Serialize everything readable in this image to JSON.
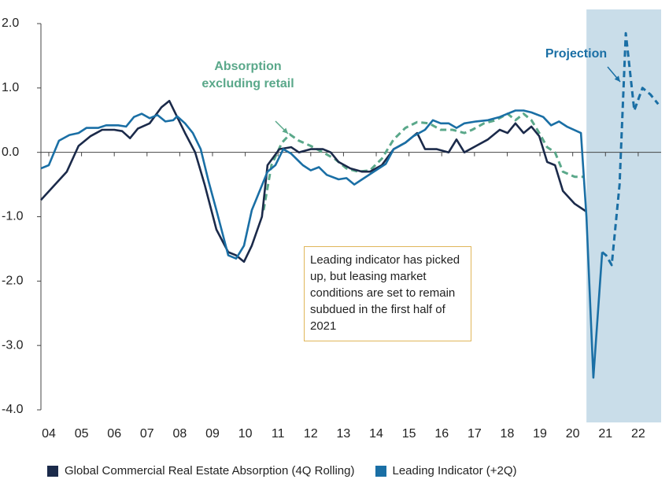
{
  "chart_data": {
    "type": "line",
    "xlim": [
      2003.76,
      2022.7
    ],
    "xticks": [
      {
        "value": 2004,
        "label": "04"
      },
      {
        "value": 2005,
        "label": "05"
      },
      {
        "value": 2006,
        "label": "06"
      },
      {
        "value": 2007,
        "label": "07"
      },
      {
        "value": 2008,
        "label": "08"
      },
      {
        "value": 2009,
        "label": "09"
      },
      {
        "value": 2010,
        "label": "10"
      },
      {
        "value": 2011,
        "label": "11"
      },
      {
        "value": 2012,
        "label": "12"
      },
      {
        "value": 2013,
        "label": "13"
      },
      {
        "value": 2014,
        "label": "14"
      },
      {
        "value": 2015,
        "label": "15"
      },
      {
        "value": 2016,
        "label": "16"
      },
      {
        "value": 2017,
        "label": "17"
      },
      {
        "value": 2018,
        "label": "18"
      },
      {
        "value": 2019,
        "label": "19"
      },
      {
        "value": 2020,
        "label": "20"
      },
      {
        "value": 2021,
        "label": "21"
      },
      {
        "value": 2022,
        "label": "22"
      }
    ],
    "ylim": [
      -4,
      2
    ],
    "yticks": [
      {
        "value": 2,
        "label": "2.0"
      },
      {
        "value": 1,
        "label": "1.0"
      },
      {
        "value": 0,
        "label": "0.0"
      },
      {
        "value": -1,
        "label": "-1.0"
      },
      {
        "value": -2,
        "label": "-2.0"
      },
      {
        "value": -3,
        "label": "-3.0"
      },
      {
        "value": -4,
        "label": "-4.0"
      }
    ],
    "shaded_region": [
      2020.42,
      2022.7
    ],
    "shaded_color": "#c9dde9",
    "annotation": "Leading indicator has picked up, but leasing market conditions are set to remain subdued in the first half of 2021",
    "series": [
      {
        "name": "Global Commercial Real Estate Absorption (4Q Rolling)",
        "color": "#1b2a4a",
        "dashed": false,
        "legend": true,
        "x": [
          2003.76,
          2004.19,
          2004.55,
          2004.91,
          2005.27,
          2005.63,
          2006.0,
          2006.24,
          2006.48,
          2006.72,
          2007.08,
          2007.44,
          2007.68,
          2007.92,
          2008.16,
          2008.47,
          2008.76,
          2009.12,
          2009.48,
          2009.72,
          2009.96,
          2010.2,
          2010.51,
          2010.68,
          2011.04,
          2011.4,
          2011.64,
          2012.0,
          2012.37,
          2012.61,
          2012.85,
          2013.21,
          2013.57,
          2013.81,
          2014.17,
          2014.53,
          2014.89,
          2015.25,
          2015.49,
          2015.85,
          2016.21,
          2016.45,
          2016.69,
          2017.05,
          2017.41,
          2017.77,
          2018.01,
          2018.25,
          2018.5,
          2018.74,
          2018.98,
          2019.22,
          2019.46,
          2019.7,
          2020.06,
          2020.42
        ],
        "values": [
          -0.74,
          -0.5,
          -0.3,
          0.1,
          0.25,
          0.35,
          0.35,
          0.33,
          0.22,
          0.37,
          0.45,
          0.7,
          0.8,
          0.55,
          0.3,
          0.0,
          -0.5,
          -1.2,
          -1.55,
          -1.6,
          -1.7,
          -1.45,
          -1.0,
          -0.2,
          0.05,
          0.08,
          0.0,
          0.05,
          0.05,
          0.0,
          -0.15,
          -0.25,
          -0.3,
          -0.3,
          -0.2,
          0.05,
          0.15,
          0.3,
          0.05,
          0.05,
          0.0,
          0.2,
          0.0,
          0.1,
          0.2,
          0.35,
          0.3,
          0.45,
          0.3,
          0.4,
          0.25,
          -0.15,
          -0.2,
          -0.6,
          -0.8,
          -0.92
        ]
      },
      {
        "name": "Leading Indicator (+2Q)",
        "color": "#1a6fa5",
        "dashed": false,
        "legend": true,
        "x": [
          2003.76,
          2004.0,
          2004.31,
          2004.63,
          2004.91,
          2005.15,
          2005.51,
          2005.75,
          2006.12,
          2006.36,
          2006.6,
          2006.84,
          2007.08,
          2007.32,
          2007.56,
          2007.8,
          2007.92,
          2008.16,
          2008.4,
          2008.64,
          2008.88,
          2009.12,
          2009.48,
          2009.72,
          2009.96,
          2010.2,
          2010.44,
          2010.68,
          2010.92,
          2011.16,
          2011.4,
          2011.76,
          2012.0,
          2012.25,
          2012.49,
          2012.85,
          2013.09,
          2013.33,
          2013.57,
          2013.93,
          2014.29,
          2014.53,
          2014.89,
          2015.13,
          2015.49,
          2015.73,
          2015.97,
          2016.21,
          2016.45,
          2016.69,
          2017.05,
          2017.41,
          2017.77,
          2018.01,
          2018.25,
          2018.5,
          2018.74,
          2019.1,
          2019.34,
          2019.58,
          2019.82,
          2020.25,
          2020.42,
          2020.63,
          2020.9
        ],
        "values": [
          -0.25,
          -0.2,
          0.18,
          0.27,
          0.3,
          0.38,
          0.38,
          0.42,
          0.42,
          0.4,
          0.55,
          0.6,
          0.53,
          0.58,
          0.48,
          0.5,
          0.56,
          0.45,
          0.3,
          0.05,
          -0.45,
          -0.9,
          -1.6,
          -1.65,
          -1.45,
          -0.9,
          -0.6,
          -0.3,
          -0.2,
          0.05,
          -0.02,
          -0.2,
          -0.28,
          -0.23,
          -0.35,
          -0.42,
          -0.4,
          -0.5,
          -0.42,
          -0.3,
          -0.18,
          0.05,
          0.15,
          0.25,
          0.35,
          0.5,
          0.45,
          0.45,
          0.38,
          0.45,
          0.48,
          0.5,
          0.55,
          0.6,
          0.65,
          0.65,
          0.62,
          0.55,
          0.42,
          0.48,
          0.4,
          0.3,
          -1.0,
          -3.5,
          -1.55
        ]
      },
      {
        "name": "Projection",
        "color": "#1a6fa5",
        "dashed": true,
        "legend": false,
        "x": [
          2020.9,
          2021.02,
          2021.19,
          2021.43,
          2021.62,
          2021.88,
          2022.13,
          2022.37,
          2022.61
        ],
        "values": [
          -1.55,
          -1.6,
          -1.75,
          -0.5,
          1.85,
          0.65,
          1.0,
          0.9,
          0.75
        ]
      },
      {
        "name": "Absorption excluding retail",
        "color": "#5aa88a",
        "dashed": true,
        "legend": false,
        "x": [
          2010.56,
          2010.8,
          2011.12,
          2011.36,
          2011.64,
          2012.0,
          2012.37,
          2012.73,
          2013.09,
          2013.45,
          2013.81,
          2014.17,
          2014.53,
          2014.89,
          2015.25,
          2015.61,
          2015.97,
          2016.33,
          2016.69,
          2016.93,
          2017.29,
          2017.65,
          2018.01,
          2018.25,
          2018.5,
          2018.74,
          2018.98,
          2019.22,
          2019.46,
          2019.7,
          2020.06,
          2020.35
        ],
        "values": [
          -0.9,
          -0.2,
          0.15,
          0.28,
          0.18,
          0.1,
          0.0,
          -0.1,
          -0.25,
          -0.3,
          -0.28,
          -0.1,
          0.2,
          0.38,
          0.47,
          0.45,
          0.35,
          0.35,
          0.3,
          0.35,
          0.45,
          0.5,
          0.6,
          0.5,
          0.6,
          0.5,
          0.3,
          0.08,
          0.0,
          -0.3,
          -0.38,
          -0.38
        ]
      }
    ]
  }
}
